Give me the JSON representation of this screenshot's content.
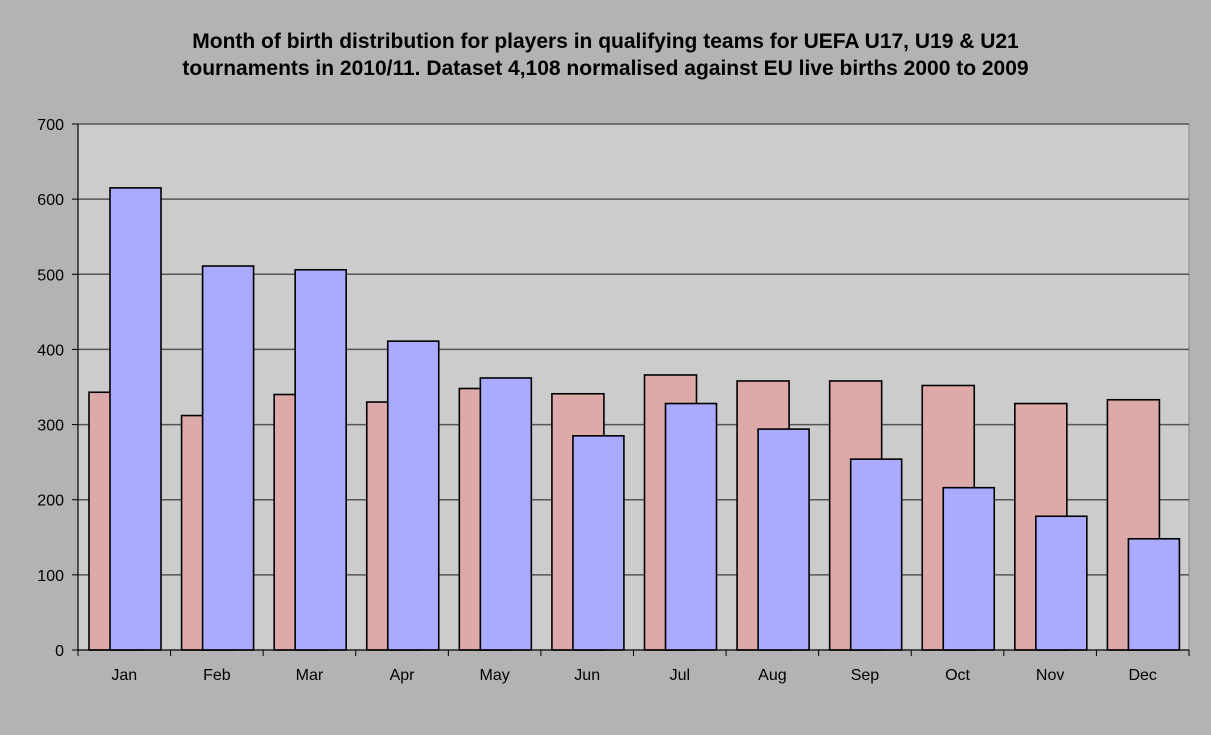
{
  "chart_data": {
    "type": "bar",
    "title_lines": [
      "Month of birth distribution for players in qualifying teams for UEFA U17, U19 & U21",
      "tournaments in 2010/11. Dataset 4,108 normalised against EU live births 2000 to 2009"
    ],
    "xlabel": "",
    "ylabel": "",
    "ylim": [
      0,
      700
    ],
    "yticks": [
      0,
      100,
      200,
      300,
      400,
      500,
      600,
      700
    ],
    "grid": true,
    "legend": "none",
    "categories": [
      "Jan",
      "Feb",
      "Mar",
      "Apr",
      "May",
      "Jun",
      "Jul",
      "Aug",
      "Sep",
      "Oct",
      "Nov",
      "Dec"
    ],
    "series": [
      {
        "color": "#dda9a9",
        "values": [
          343,
          312,
          340,
          330,
          348,
          341,
          366,
          358,
          358,
          352,
          328,
          333
        ]
      },
      {
        "color": "#aaaaff",
        "values": [
          615,
          511,
          506,
          411,
          362,
          285,
          328,
          294,
          254,
          216,
          178,
          148
        ]
      }
    ],
    "colors": {
      "background": "#b3b3b3",
      "plot_area": "#cccccc",
      "gridline": "#555555"
    }
  }
}
